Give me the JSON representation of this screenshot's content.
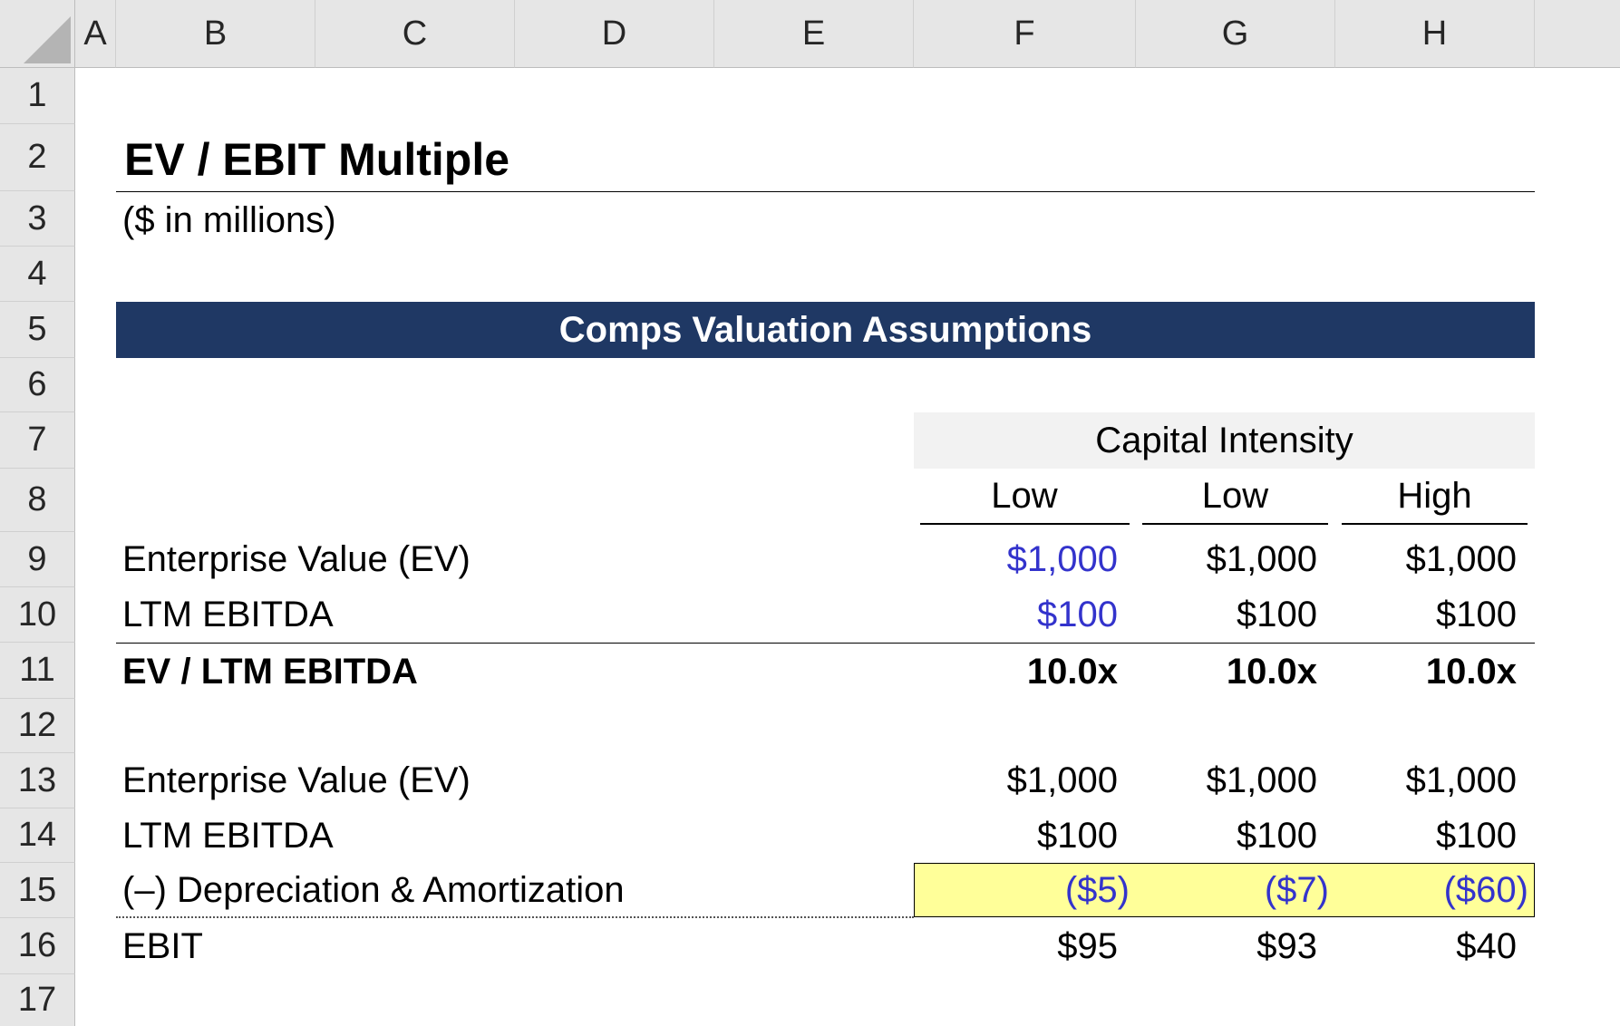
{
  "columns": [
    "A",
    "B",
    "C",
    "D",
    "E",
    "F",
    "G",
    "H"
  ],
  "rows": [
    "1",
    "2",
    "3",
    "4",
    "5",
    "6",
    "7",
    "8",
    "9",
    "10",
    "11",
    "12",
    "13",
    "14",
    "15",
    "16",
    "17"
  ],
  "title": "EV / EBIT Multiple",
  "subtitle": "($ in millions)",
  "banner": "Comps Valuation Assumptions",
  "group_header": "Capital Intensity",
  "scenarios": [
    "Low",
    "Low",
    "High"
  ],
  "table": {
    "ev_label": "Enterprise Value (EV)",
    "ev": [
      "$1,000",
      "$1,000",
      "$1,000"
    ],
    "ebitda_label": "LTM EBITDA",
    "ebitda": [
      "$100",
      "$100",
      "$100"
    ],
    "multiple_label": "EV / LTM EBITDA",
    "multiple": [
      "10.0x",
      "10.0x",
      "10.0x"
    ],
    "ev2_label": "Enterprise Value (EV)",
    "ev2": [
      "$1,000",
      "$1,000",
      "$1,000"
    ],
    "ebitda2_label": "LTM EBITDA",
    "ebitda2": [
      "$100",
      "$100",
      "$100"
    ],
    "da_label": "(–) Depreciation & Amortization",
    "da": [
      "($5)",
      "($7)",
      "($60)"
    ],
    "ebit_label": "EBIT",
    "ebit": [
      "$95",
      "$93",
      "$40"
    ]
  },
  "colors": {
    "banner_bg": "#1f3864",
    "input_blue": "#3333cc",
    "highlight_yellow": "#ffff99",
    "header_gray": "#e6e6e6"
  }
}
